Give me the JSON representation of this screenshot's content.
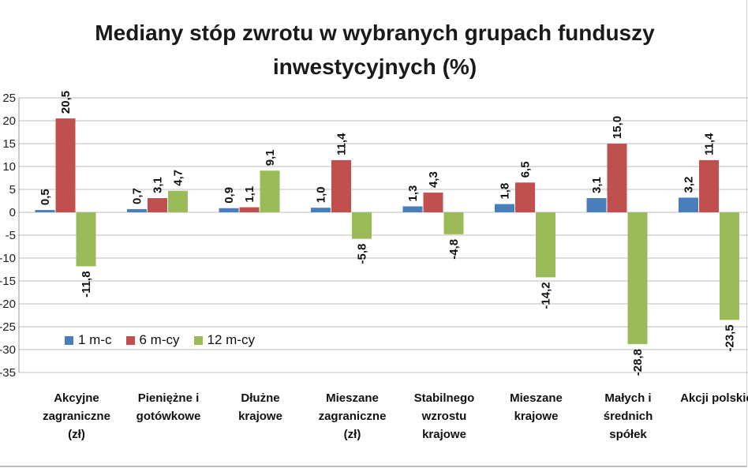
{
  "chart_data": {
    "type": "bar",
    "title": "Mediany stóp zwrotu w wybranych grupach funduszy inwestycyjnych (%)",
    "categories": [
      "Akcyjne\nzagraniczne\n(zł)",
      "Pieniężne i\ngotówkowe",
      "Dłużne\nkrajowe",
      "Mieszane\nzagraniczne\n(zł)",
      "Stabilnego\nwzrostu\nkrajowe",
      "Mieszane\nkrajowe",
      "Małych i\nśrednich\nspółek",
      "Akcji polskich"
    ],
    "series": [
      {
        "name": "1 m-c",
        "color": "#4a7ebb",
        "values": [
          0.5,
          0.7,
          0.9,
          1.0,
          1.3,
          1.8,
          3.1,
          3.2
        ],
        "labels": [
          "0,5",
          "0,7",
          "0,9",
          "1,0",
          "1,3",
          "1,8",
          "3,1",
          "3,2"
        ]
      },
      {
        "name": "6 m-cy",
        "color": "#c0504d",
        "values": [
          20.5,
          3.1,
          1.1,
          11.4,
          4.3,
          6.5,
          15.0,
          11.4
        ],
        "labels": [
          "20,5",
          "3,1",
          "1,1",
          "11,4",
          "4,3",
          "6,5",
          "15,0",
          "11,4"
        ]
      },
      {
        "name": "12 m-cy",
        "color": "#9bbb59",
        "values": [
          -11.8,
          4.7,
          9.1,
          -5.8,
          -4.8,
          -14.2,
          -28.8,
          -23.5
        ],
        "labels": [
          "-11,8",
          "4,7",
          "9,1",
          "-5,8",
          "-4,8",
          "-14,2",
          "-28,8",
          "-23,5"
        ]
      }
    ],
    "yticks": [
      "25",
      "20",
      "15",
      "10",
      "5",
      "0",
      "-5",
      "-10",
      "-15",
      "-20",
      "-25",
      "-30",
      "-35"
    ],
    "ylim": [
      -35,
      25
    ],
    "grid": true,
    "legend": "bottom-left inside plot"
  }
}
